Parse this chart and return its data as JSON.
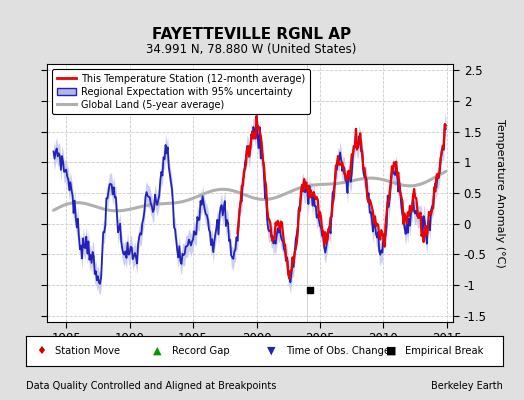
{
  "title": "FAYETTEVILLE RGNL AP",
  "subtitle": "34.991 N, 78.880 W (United States)",
  "ylabel": "Temperature Anomaly (°C)",
  "xlim": [
    1983.5,
    2015.5
  ],
  "ylim": [
    -1.6,
    2.6
  ],
  "yticks": [
    -1.5,
    -1.0,
    -0.5,
    0.0,
    0.5,
    1.0,
    1.5,
    2.0,
    2.5
  ],
  "xticks": [
    1985,
    1990,
    1995,
    2000,
    2005,
    2010,
    2015
  ],
  "bg_color": "#e0e0e0",
  "plot_bg_color": "#ffffff",
  "grid_color": "#cccccc",
  "red_color": "#ee0000",
  "blue_color": "#2222bb",
  "blue_fill_color": "#b0b8e8",
  "gray_color": "#b0b0b0",
  "footer_left": "Data Quality Controlled and Aligned at Breakpoints",
  "footer_right": "Berkeley Earth",
  "empirical_break_x": 2004.2,
  "empirical_break_y": -1.08,
  "legend_entries": [
    "This Temperature Station (12-month average)",
    "Regional Expectation with 95% uncertainty",
    "Global Land (5-year average)"
  ],
  "bottom_legend": [
    "Station Move",
    "Record Gap",
    "Time of Obs. Change",
    "Empirical Break"
  ],
  "red_starts": 1998.5
}
